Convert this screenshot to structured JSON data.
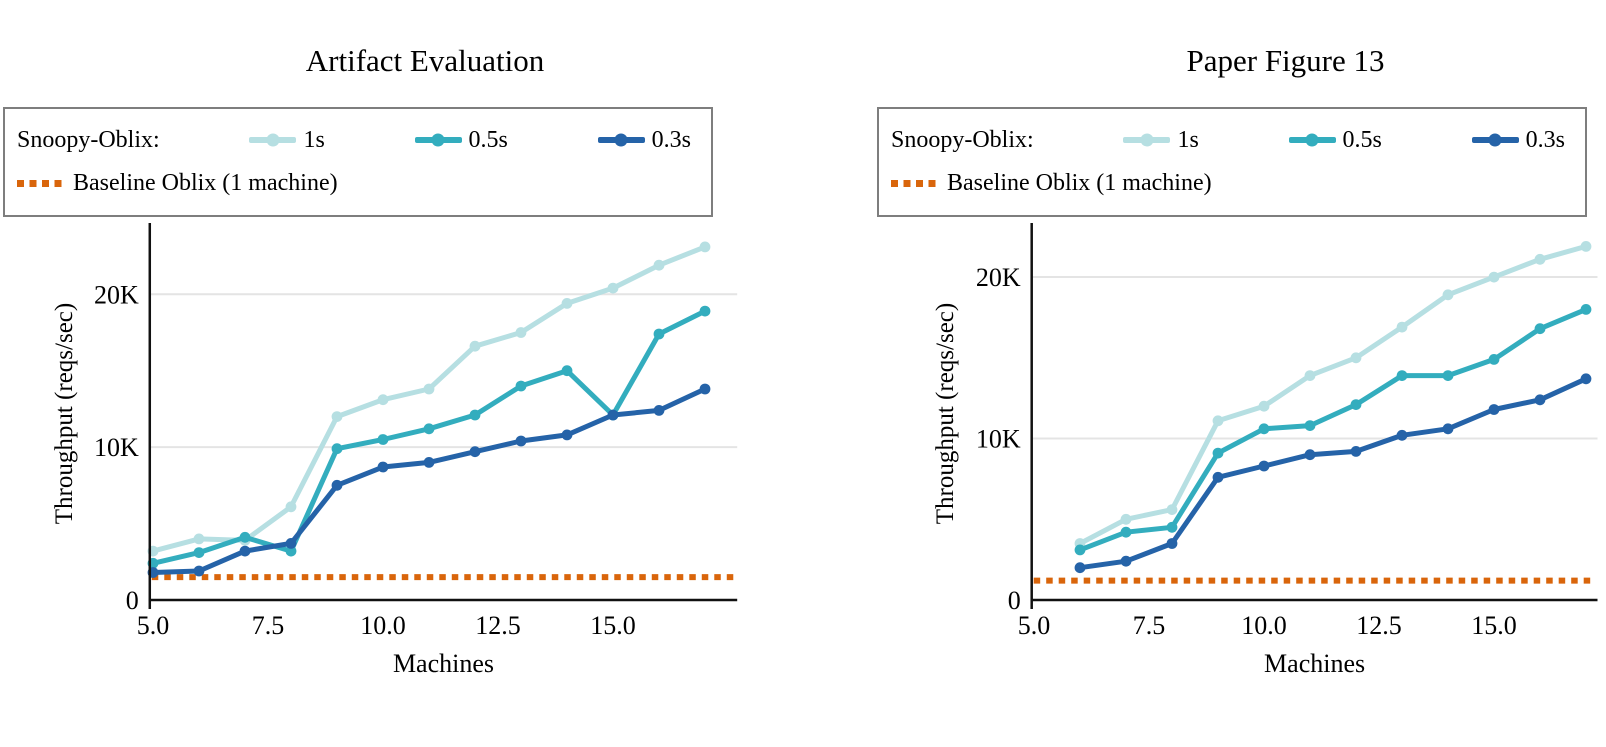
{
  "chart_data": [
    {
      "type": "line",
      "title": "Artifact Evaluation",
      "xlabel": "Machines",
      "ylabel": "Throughput (reqs/sec)",
      "legend_group_label": "Snoopy-Oblix:",
      "x": [
        5,
        6,
        7,
        8,
        9,
        10,
        11,
        12,
        13,
        14,
        15,
        16,
        17
      ],
      "series": [
        {
          "name": "1s",
          "color": "#b6dfe2",
          "values_k": [
            3.2,
            4.0,
            3.9,
            6.1,
            12.0,
            13.1,
            13.8,
            16.6,
            17.5,
            19.4,
            20.4,
            21.9,
            23.1
          ]
        },
        {
          "name": "0.5s",
          "color": "#33adbe",
          "values_k": [
            2.4,
            3.1,
            4.1,
            3.2,
            9.9,
            10.5,
            11.2,
            12.1,
            14.0,
            15.0,
            12.1,
            17.4,
            18.9
          ]
        },
        {
          "name": "0.3s",
          "color": "#2563a8",
          "values_k": [
            1.8,
            1.9,
            3.2,
            3.7,
            7.5,
            8.7,
            9.0,
            9.7,
            10.4,
            10.8,
            12.1,
            12.4,
            13.8
          ]
        }
      ],
      "baseline": {
        "label": "Baseline Oblix (1 machine)",
        "color": "#d9650b",
        "value_k": 1.5,
        "style": "dotted"
      },
      "yticks": [
        {
          "v": 0,
          "label": "0"
        },
        {
          "v": 10,
          "label": "10K"
        },
        {
          "v": 20,
          "label": "20K"
        }
      ],
      "xticks": [
        {
          "v": 5,
          "label": "5.0"
        },
        {
          "v": 7.5,
          "label": "7.5"
        },
        {
          "v": 10,
          "label": "10.0"
        },
        {
          "v": 12.5,
          "label": "12.5"
        },
        {
          "v": 15,
          "label": "15.0"
        }
      ],
      "ylim_k": [
        0,
        24.4
      ],
      "xlim": [
        4.93,
        17.7
      ],
      "grid": "horizontal-only",
      "legend_position": "top-box"
    },
    {
      "type": "line",
      "title": "Paper Figure 13",
      "xlabel": "Machines",
      "ylabel": "Throughput (reqs/sec)",
      "legend_group_label": "Snoopy-Oblix:",
      "x": [
        6,
        7,
        8,
        9,
        10,
        11,
        12,
        13,
        14,
        15,
        16,
        17
      ],
      "series": [
        {
          "name": "1s",
          "color": "#b6dfe2",
          "values_k": [
            3.5,
            5.0,
            5.6,
            11.1,
            12.0,
            13.9,
            15.0,
            16.9,
            18.9,
            20.0,
            21.1,
            21.9
          ]
        },
        {
          "name": "0.5s",
          "color": "#33adbe",
          "values_k": [
            3.1,
            4.2,
            4.5,
            9.1,
            10.6,
            10.8,
            12.1,
            13.9,
            13.9,
            14.9,
            16.8,
            18.0
          ]
        },
        {
          "name": "0.3s",
          "color": "#2563a8",
          "values_k": [
            2.0,
            2.4,
            3.5,
            7.6,
            8.3,
            9.0,
            9.2,
            10.2,
            10.6,
            11.8,
            12.4,
            13.7
          ]
        }
      ],
      "baseline": {
        "label": "Baseline Oblix (1 machine)",
        "color": "#d9650b",
        "value_k": 1.2,
        "style": "dotted"
      },
      "yticks": [
        {
          "v": 0,
          "label": "0"
        },
        {
          "v": 10,
          "label": "10K"
        },
        {
          "v": 20,
          "label": "20K"
        }
      ],
      "xticks": [
        {
          "v": 5,
          "label": "5.0"
        },
        {
          "v": 7.5,
          "label": "7.5"
        },
        {
          "v": 10,
          "label": "10.0"
        },
        {
          "v": 12.5,
          "label": "12.5"
        },
        {
          "v": 15,
          "label": "15.0"
        }
      ],
      "ylim_k": [
        0,
        23.1
      ],
      "xlim": [
        4.95,
        17.25
      ],
      "grid": "horizontal-only",
      "legend_position": "top-box"
    }
  ],
  "style": {
    "grid_color": "#e4e4e4",
    "axis_color": "#111111",
    "text_color": "#000000",
    "legend_border_color": "#7e7e7e"
  }
}
